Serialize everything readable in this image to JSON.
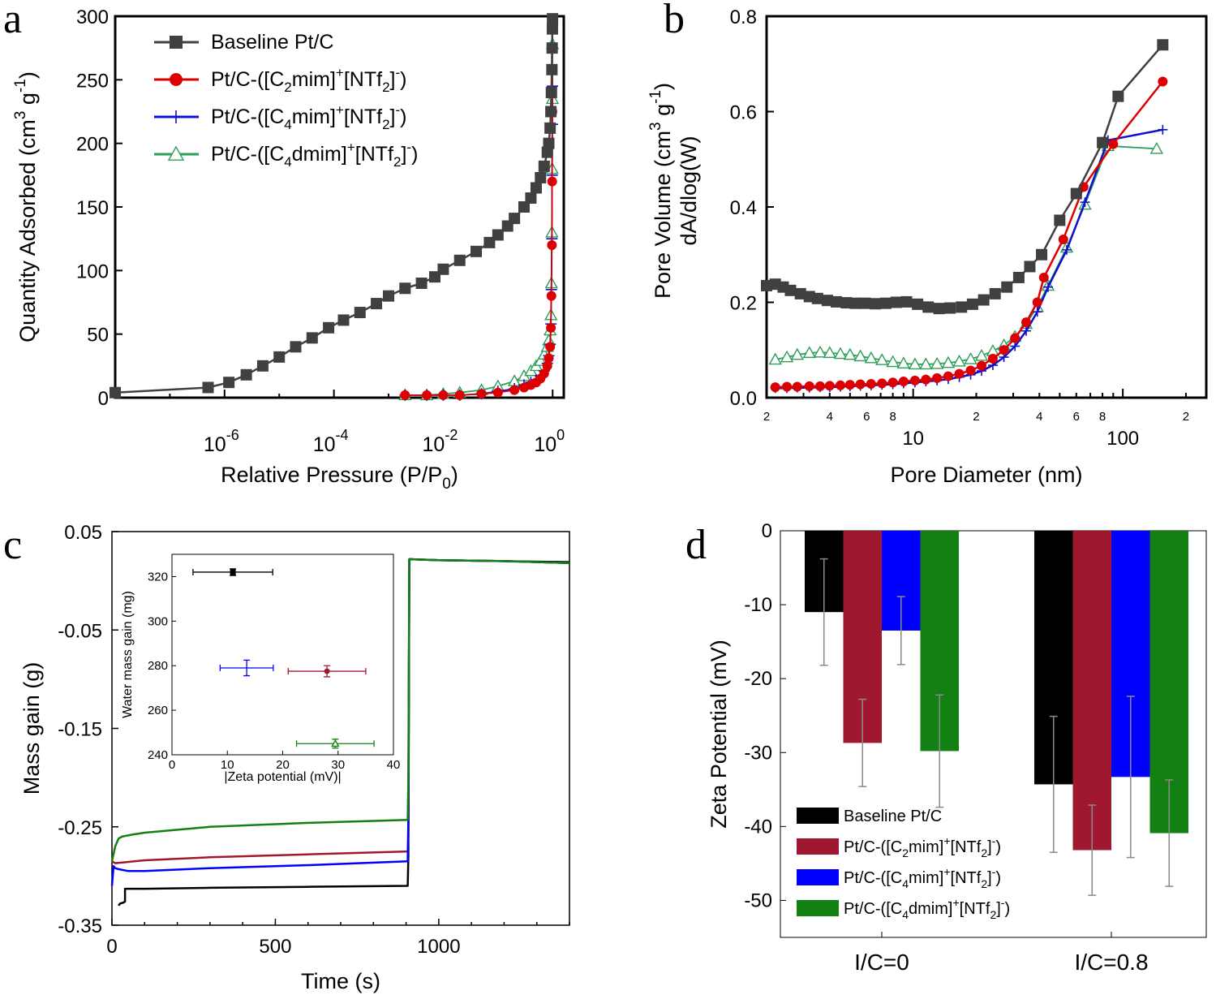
{
  "panel_labels": [
    "a",
    "b",
    "c",
    "d"
  ],
  "colors": {
    "baseline": "#404040",
    "c2": "#dd0000",
    "c4": "#1010cc",
    "c4d": "#2e9e5a",
    "c_black": "#000000",
    "c_red": "#a01830",
    "c_blue": "#0000ff",
    "c_green": "#138013"
  },
  "legend_ab": [
    {
      "key": "baseline",
      "text": "Baseline Pt/C",
      "marker": "square"
    },
    {
      "key": "c2",
      "pre": "Pt/C-([C",
      "sub1": "2",
      "mid": "mim]",
      "sup1": "+",
      "post": "[NTf",
      "sub2": "2",
      "end": "]",
      "sup2": "-",
      "suffix": ")",
      "marker": "circle"
    },
    {
      "key": "c4",
      "pre": "Pt/C-([C",
      "sub1": "4",
      "mid": "mim]",
      "sup1": "+",
      "post": "[NTf",
      "sub2": "2",
      "end": "]",
      "sup2": "-",
      "suffix": ")",
      "marker": "plus"
    },
    {
      "key": "c4d",
      "pre": "Pt/C-([C",
      "sub1": "4",
      "mid": "dmim]",
      "sup1": "+",
      "post": "[NTf",
      "sub2": "2",
      "end": "]",
      "sup2": "-",
      "suffix": ")",
      "marker": "triangle"
    }
  ],
  "chart_data": [
    {
      "panel": "a",
      "type": "line",
      "xscale": "log",
      "xlim": [
        1e-08,
        1.6
      ],
      "ylim": [
        0,
        300
      ],
      "yticks": [
        0,
        50,
        100,
        150,
        200,
        250,
        300
      ],
      "xticks": [
        {
          "value": 1e-06,
          "base": "10",
          "exp": "-6"
        },
        {
          "value": 0.0001,
          "base": "10",
          "exp": "-4"
        },
        {
          "value": 0.01,
          "base": "10",
          "exp": "-2"
        },
        {
          "value": 1,
          "base": "10",
          "exp": "0"
        }
      ],
      "xlabel": {
        "main": "Relative Pressure (P/P",
        "sub": "0",
        "close": ")"
      },
      "ylabel": {
        "main": "Quantity Adsorbed (cm",
        "sup1": "3",
        "mid": " g",
        "sup2": "-1",
        "close": ")"
      },
      "series": [
        {
          "key": "baseline",
          "x": [
            1e-08,
            5e-07,
            1.2e-06,
            2.5e-06,
            5e-06,
            1e-05,
            2e-05,
            4e-05,
            8e-05,
            0.00015,
            0.0003,
            0.0006,
            0.001,
            0.002,
            0.004,
            0.007,
            0.01,
            0.02,
            0.04,
            0.07,
            0.1,
            0.15,
            0.2,
            0.3,
            0.4,
            0.5,
            0.6,
            0.7,
            0.8,
            0.85,
            0.9,
            0.93,
            0.95,
            0.97,
            0.98,
            0.99,
            0.995
          ],
          "y": [
            4,
            8,
            12,
            18,
            25,
            32,
            40,
            47,
            55,
            61,
            67,
            74,
            80,
            86,
            90,
            95,
            101,
            108,
            115,
            122,
            128,
            135,
            141,
            150,
            157,
            165,
            173,
            182,
            193,
            200,
            212,
            225,
            240,
            258,
            275,
            290,
            298
          ]
        },
        {
          "key": "c2",
          "x": [
            0.002,
            0.005,
            0.01,
            0.02,
            0.05,
            0.1,
            0.2,
            0.3,
            0.4,
            0.5,
            0.6,
            0.7,
            0.8,
            0.85,
            0.9,
            0.93,
            0.95,
            0.97,
            0.98,
            0.99,
            0.995
          ],
          "y": [
            2,
            2,
            2,
            2,
            3,
            4,
            6,
            8,
            10,
            12,
            15,
            19,
            25,
            31,
            40,
            55,
            80,
            120,
            170,
            225,
            258
          ]
        },
        {
          "key": "c4",
          "x": [
            0.002,
            0.005,
            0.01,
            0.02,
            0.05,
            0.1,
            0.2,
            0.3,
            0.4,
            0.5,
            0.6,
            0.7,
            0.8,
            0.85,
            0.9,
            0.93,
            0.95,
            0.97,
            0.98,
            0.99,
            0.995
          ],
          "y": [
            2,
            2,
            2,
            2,
            3,
            5,
            7,
            10,
            12,
            14,
            17,
            21,
            27,
            33,
            42,
            58,
            85,
            125,
            175,
            215,
            245
          ]
        },
        {
          "key": "c4d",
          "x": [
            0.002,
            0.005,
            0.01,
            0.02,
            0.05,
            0.1,
            0.2,
            0.3,
            0.4,
            0.5,
            0.6,
            0.7,
            0.8,
            0.85,
            0.9,
            0.93,
            0.95,
            0.97,
            0.98,
            0.99,
            0.995
          ],
          "y": [
            2,
            2,
            3,
            4,
            6,
            9,
            13,
            17,
            21,
            25,
            29,
            34,
            40,
            45,
            53,
            65,
            90,
            130,
            180,
            235,
            278
          ]
        }
      ]
    },
    {
      "panel": "b",
      "type": "line",
      "xscale": "log",
      "xlim": [
        2,
        250
      ],
      "ylim": [
        0,
        0.8
      ],
      "yticks": [
        0,
        0.2,
        0.4,
        0.6,
        0.8
      ],
      "ytick_labels": [
        "0.0",
        "0.2",
        "0.4",
        "0.6",
        "0.8"
      ],
      "xmajor": [
        {
          "value": 10,
          "label": "10"
        },
        {
          "value": 100,
          "label": "100"
        }
      ],
      "xminor": [
        {
          "value": 2,
          "label": "2"
        },
        {
          "value": 3,
          "label": ""
        },
        {
          "value": 4,
          "label": "4"
        },
        {
          "value": 5,
          "label": ""
        },
        {
          "value": 6,
          "label": "6"
        },
        {
          "value": 7,
          "label": ""
        },
        {
          "value": 8,
          "label": "8"
        },
        {
          "value": 9,
          "label": ""
        },
        {
          "value": 20,
          "label": "2"
        },
        {
          "value": 30,
          "label": ""
        },
        {
          "value": 40,
          "label": "4"
        },
        {
          "value": 50,
          "label": ""
        },
        {
          "value": 60,
          "label": "6"
        },
        {
          "value": 70,
          "label": ""
        },
        {
          "value": 80,
          "label": "8"
        },
        {
          "value": 90,
          "label": ""
        },
        {
          "value": 200,
          "label": "2"
        }
      ],
      "xlabel": "Pore Diameter (nm)",
      "ylabel_line1": {
        "main": "Pore Volume (cm",
        "sup1": "3",
        "mid": " g",
        "sup2": "-1",
        "close": ")"
      },
      "ylabel_line2": "dA/dlog(W)",
      "series": [
        {
          "key": "baseline",
          "x": [
            2.0,
            2.2,
            2.4,
            2.6,
            2.9,
            3.2,
            3.5,
            3.9,
            4.3,
            4.8,
            5.3,
            5.9,
            6.6,
            7.4,
            8.3,
            9.3,
            10.5,
            11.8,
            13.3,
            15.0,
            17.0,
            19.2,
            21.7,
            24.6,
            28.0,
            31.9,
            36.0,
            41.0,
            50.0,
            60.0,
            80.0,
            95.0,
            155.0
          ],
          "y": [
            0.235,
            0.238,
            0.232,
            0.225,
            0.218,
            0.212,
            0.208,
            0.204,
            0.201,
            0.199,
            0.198,
            0.198,
            0.197,
            0.198,
            0.2,
            0.201,
            0.196,
            0.19,
            0.187,
            0.188,
            0.19,
            0.196,
            0.205,
            0.218,
            0.232,
            0.252,
            0.275,
            0.3,
            0.372,
            0.428,
            0.535,
            0.632,
            0.74
          ]
        },
        {
          "key": "c2",
          "x": [
            2.2,
            2.5,
            2.8,
            3.2,
            3.6,
            4.0,
            4.5,
            5.0,
            5.6,
            6.3,
            7.1,
            8.0,
            9.0,
            10.2,
            11.5,
            13.0,
            14.7,
            16.6,
            18.8,
            21.2,
            24.0,
            27.1,
            30.6,
            34.6,
            39.1,
            42.0,
            52.0,
            65.0,
            90.0,
            155.0
          ],
          "y": [
            0.022,
            0.023,
            0.023,
            0.024,
            0.024,
            0.025,
            0.026,
            0.027,
            0.028,
            0.029,
            0.03,
            0.032,
            0.034,
            0.036,
            0.038,
            0.041,
            0.045,
            0.05,
            0.057,
            0.067,
            0.082,
            0.1,
            0.125,
            0.158,
            0.2,
            0.252,
            0.332,
            0.442,
            0.532,
            0.663
          ]
        },
        {
          "key": "c4",
          "x": [
            2.2,
            2.5,
            2.8,
            3.2,
            3.6,
            4.0,
            4.5,
            5.0,
            5.6,
            6.3,
            7.1,
            8.0,
            9.0,
            10.2,
            11.5,
            13.0,
            14.7,
            16.6,
            18.8,
            21.2,
            24.0,
            27.1,
            30.6,
            34.6,
            39.1,
            44.0,
            54.0,
            66.0,
            85.0,
            155.0
          ],
          "y": [
            0.02,
            0.02,
            0.021,
            0.021,
            0.022,
            0.022,
            0.023,
            0.024,
            0.025,
            0.026,
            0.027,
            0.028,
            0.03,
            0.032,
            0.034,
            0.036,
            0.039,
            0.043,
            0.048,
            0.056,
            0.068,
            0.085,
            0.108,
            0.14,
            0.18,
            0.232,
            0.31,
            0.41,
            0.54,
            0.562
          ]
        },
        {
          "key": "c4d",
          "x": [
            2.2,
            2.5,
            2.8,
            3.2,
            3.6,
            4.0,
            4.5,
            5.0,
            5.6,
            6.3,
            7.1,
            8.0,
            9.0,
            10.2,
            11.5,
            13.0,
            14.7,
            16.6,
            18.8,
            21.2,
            24.0,
            27.1,
            30.6,
            34.6,
            39.1,
            44.0,
            54.0,
            66.0,
            85.0,
            145.0
          ],
          "y": [
            0.08,
            0.085,
            0.09,
            0.094,
            0.095,
            0.094,
            0.092,
            0.09,
            0.087,
            0.083,
            0.079,
            0.075,
            0.072,
            0.07,
            0.07,
            0.071,
            0.073,
            0.076,
            0.081,
            0.088,
            0.098,
            0.11,
            0.128,
            0.155,
            0.19,
            0.235,
            0.315,
            0.405,
            0.528,
            0.522
          ]
        }
      ]
    },
    {
      "panel": "c",
      "type": "line",
      "xlim": [
        0,
        1400
      ],
      "ylim": [
        -0.35,
        0.05
      ],
      "xticks": [
        0,
        500,
        1000
      ],
      "yticks": [
        0.05,
        -0.05,
        -0.15,
        -0.25,
        -0.35
      ],
      "ytick_labels": [
        "0.05",
        "-0.05",
        "-0.15",
        "-0.25",
        "-0.35"
      ],
      "xlabel": "Time (s)",
      "ylabel": "Mass gain (g)",
      "series": [
        {
          "key": "c_black",
          "x": [
            20,
            25,
            35,
            40,
            40,
            100,
            300,
            600,
            905,
            907,
            910,
            1000,
            1200,
            1400
          ],
          "y": [
            -0.33,
            -0.328,
            -0.327,
            -0.326,
            -0.313,
            -0.313,
            -0.312,
            -0.311,
            -0.31,
            -0.28,
            0.022,
            0.021,
            0.02,
            0.019
          ]
        },
        {
          "key": "c_red",
          "x": [
            0,
            10,
            100,
            300,
            600,
            905,
            907,
            910,
            1000,
            1200,
            1400
          ],
          "y": [
            -0.285,
            -0.287,
            -0.284,
            -0.281,
            -0.278,
            -0.275,
            -0.26,
            0.022,
            0.021,
            0.02,
            0.018
          ]
        },
        {
          "key": "c_blue",
          "x": [
            0,
            5,
            10,
            20,
            50,
            100,
            300,
            600,
            905,
            907,
            910,
            1000,
            1200,
            1400
          ],
          "y": [
            -0.31,
            -0.29,
            -0.292,
            -0.293,
            -0.295,
            -0.295,
            -0.292,
            -0.289,
            -0.285,
            -0.24,
            0.022,
            0.021,
            0.02,
            0.018
          ]
        },
        {
          "key": "c_green",
          "x": [
            0,
            10,
            20,
            30,
            60,
            100,
            300,
            600,
            905,
            907,
            910,
            1000,
            1200,
            1400
          ],
          "y": [
            -0.285,
            -0.27,
            -0.262,
            -0.26,
            -0.258,
            -0.256,
            -0.25,
            -0.246,
            -0.243,
            -0.2,
            0.022,
            0.021,
            0.02,
            0.018
          ]
        }
      ],
      "inset": {
        "xlim": [
          0,
          40
        ],
        "ylim": [
          240,
          330
        ],
        "xticks": [
          0,
          10,
          20,
          30,
          40
        ],
        "yticks": [
          240,
          260,
          280,
          300,
          320
        ],
        "xlabel": "|Zeta potential (mV)|",
        "ylabel": "Water mass gain (mg)",
        "points": [
          {
            "key": "c_black",
            "x": 11,
            "y": 322,
            "xerr": 7.2,
            "yerr": 1.5,
            "marker": "square"
          },
          {
            "key": "c_blue",
            "x": 13.5,
            "y": 279,
            "xerr": 4.8,
            "yerr": 3.5,
            "marker": "none"
          },
          {
            "key": "c_red",
            "x": 28,
            "y": 277.5,
            "xerr": 7,
            "yerr": 2.5,
            "marker": "circle"
          },
          {
            "key": "c_green",
            "x": 29.5,
            "y": 245,
            "xerr": 7,
            "yerr": 2,
            "marker": "triangle"
          }
        ]
      }
    },
    {
      "panel": "d",
      "type": "bar",
      "categories": [
        "I/C=0",
        "I/C=0.8"
      ],
      "ylim": [
        -55,
        0
      ],
      "yticks": [
        0,
        -10,
        -20,
        -30,
        -40,
        -50
      ],
      "ylabel": "Zeta Potential (mV)",
      "series": [
        {
          "key": "c_black",
          "values": [
            -11,
            -34.3
          ],
          "errors": [
            7.2,
            9.2
          ]
        },
        {
          "key": "c_red",
          "values": [
            -28.7,
            -43.2
          ],
          "errors": [
            5.9,
            6.1
          ]
        },
        {
          "key": "c_blue",
          "values": [
            -13.5,
            -33.3
          ],
          "errors": [
            4.6,
            10.9
          ]
        },
        {
          "key": "c_green",
          "values": [
            -29.8,
            -40.9
          ],
          "errors": [
            7.6,
            7.2
          ]
        }
      ],
      "legend": [
        {
          "key": "c_black",
          "text": "Baseline Pt/C"
        },
        {
          "key": "c_red",
          "pre": "Pt/C-([C",
          "sub1": "2",
          "mid": "mim]",
          "sup1": "+",
          "post": "[NTf",
          "sub2": "2",
          "end": "]",
          "sup2": "-",
          "suffix": ")"
        },
        {
          "key": "c_blue",
          "pre": "Pt/C-([C",
          "sub1": "4",
          "mid": "mim]",
          "sup1": "+",
          "post": "[NTf",
          "sub2": "2",
          "end": "]",
          "sup2": "-",
          "suffix": ")"
        },
        {
          "key": "c_green",
          "pre": "Pt/C-([C",
          "sub1": "4",
          "mid": "dmim]",
          "sup1": "+",
          "post": "[NTf",
          "sub2": "2",
          "end": "]",
          "sup2": "-",
          "suffix": ")"
        }
      ]
    }
  ]
}
